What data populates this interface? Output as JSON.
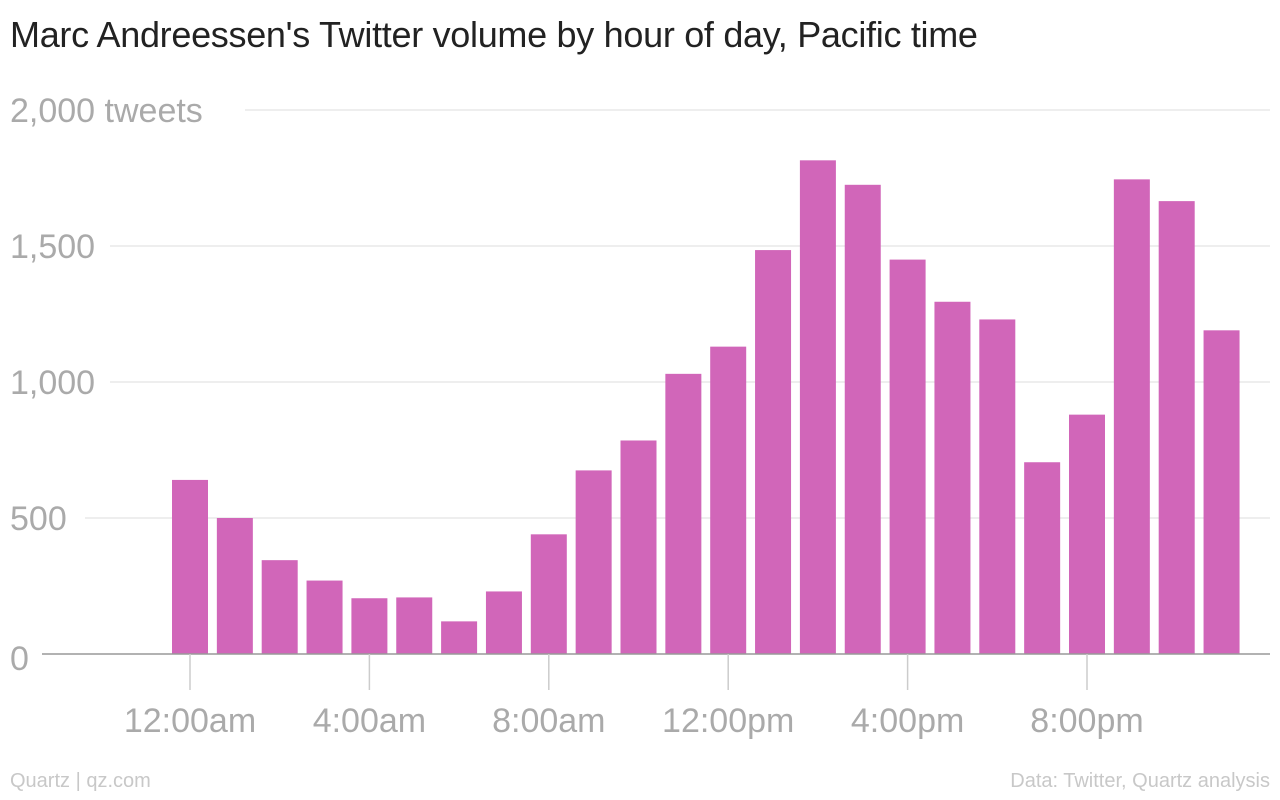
{
  "chart_data": {
    "type": "bar",
    "title": "Marc Andreessen's Twitter volume by hour of day, Pacific time",
    "xlabel": "",
    "ylabel": "",
    "ylim": [
      0,
      2000
    ],
    "y_ticks": [
      {
        "value": 0,
        "label": "0"
      },
      {
        "value": 500,
        "label": "500"
      },
      {
        "value": 1000,
        "label": "1,000"
      },
      {
        "value": 1500,
        "label": "1,500"
      },
      {
        "value": 2000,
        "label": "2,000 tweets"
      }
    ],
    "x_ticks": [
      {
        "hour": 0,
        "label": "12:00am"
      },
      {
        "hour": 4,
        "label": "4:00am"
      },
      {
        "hour": 8,
        "label": "8:00am"
      },
      {
        "hour": 12,
        "label": "12:00pm"
      },
      {
        "hour": 16,
        "label": "4:00pm"
      },
      {
        "hour": 20,
        "label": "8:00pm"
      }
    ],
    "categories": [
      0,
      1,
      2,
      3,
      4,
      5,
      6,
      7,
      8,
      9,
      10,
      11,
      12,
      13,
      14,
      15,
      16,
      17,
      18,
      19,
      20,
      21,
      22,
      23
    ],
    "values": [
      640,
      500,
      345,
      270,
      205,
      208,
      120,
      230,
      440,
      675,
      785,
      1030,
      1130,
      1485,
      1815,
      1725,
      1450,
      1295,
      1230,
      705,
      880,
      1745,
      1665,
      1190
    ],
    "grid": true,
    "bar_color": "#d166b9",
    "grid_color": "#e8e8e8",
    "axis_color": "#999999",
    "tick_label_color": "#aaaaaa"
  },
  "footer": {
    "source_left": "Quartz | qz.com",
    "source_right": "Data: Twitter, Quartz analysis"
  }
}
